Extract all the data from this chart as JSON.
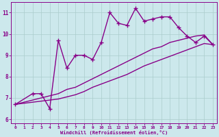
{
  "x_values": [
    0,
    1,
    2,
    3,
    4,
    5,
    6,
    7,
    8,
    9,
    10,
    11,
    12,
    13,
    14,
    15,
    16,
    17,
    18,
    19,
    20,
    21,
    22,
    23
  ],
  "main_line": [
    6.7,
    null,
    7.2,
    7.2,
    6.5,
    9.7,
    8.4,
    9.0,
    9.0,
    8.8,
    9.6,
    11.0,
    10.5,
    10.4,
    11.2,
    10.6,
    10.7,
    10.8,
    10.8,
    10.3,
    9.9,
    9.6,
    9.9,
    9.5
  ],
  "line2": [
    6.7,
    6.8,
    6.9,
    7.0,
    7.1,
    7.2,
    7.4,
    7.5,
    7.7,
    7.9,
    8.1,
    8.3,
    8.5,
    8.7,
    8.9,
    9.1,
    9.3,
    9.4,
    9.6,
    9.7,
    9.8,
    9.9,
    9.95,
    9.5
  ],
  "line3": [
    6.7,
    6.75,
    6.8,
    6.85,
    6.9,
    6.95,
    7.05,
    7.15,
    7.3,
    7.5,
    7.65,
    7.8,
    7.95,
    8.1,
    8.3,
    8.5,
    8.65,
    8.8,
    8.95,
    9.1,
    9.25,
    9.4,
    9.55,
    9.5
  ],
  "color": "#880088",
  "bg_color": "#cce8ec",
  "grid_color": "#aacccc",
  "ylim": [
    5.8,
    11.5
  ],
  "xlim": [
    -0.5,
    23.5
  ],
  "yticks": [
    6,
    7,
    8,
    9,
    10,
    11
  ],
  "xticks": [
    0,
    1,
    2,
    3,
    4,
    5,
    6,
    7,
    8,
    9,
    10,
    11,
    12,
    13,
    14,
    15,
    16,
    17,
    18,
    19,
    20,
    21,
    22,
    23
  ],
  "xlabel": "Windchill (Refroidissement éolien,°C)",
  "marker": "+",
  "markersize": 4,
  "lw": 1.0
}
